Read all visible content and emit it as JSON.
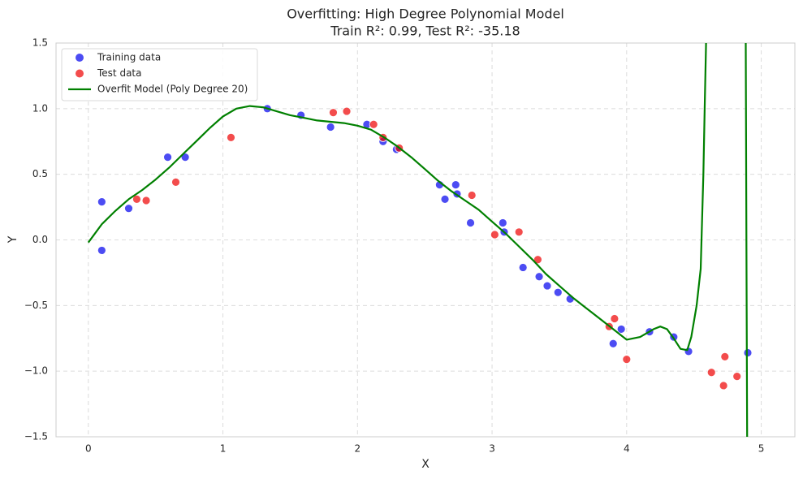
{
  "chart_data": {
    "type": "scatter",
    "title": "Overfitting: High Degree Polynomial Model",
    "subtitle": "Train R²: 0.99, Test R²: -35.18",
    "x_label": "X",
    "y_label": "Y",
    "xlim": [
      -0.24,
      5.25
    ],
    "ylim": [
      -1.5,
      1.5
    ],
    "xticks": [
      0,
      1,
      2,
      3,
      4,
      5
    ],
    "yticks": [
      {
        "value": -1.5,
        "label": "−1.5"
      },
      {
        "value": -1.0,
        "label": "−1.0"
      },
      {
        "value": -0.5,
        "label": "−0.5"
      },
      {
        "value": 0.0,
        "label": "0.0"
      },
      {
        "value": 0.5,
        "label": "0.5"
      },
      {
        "value": 1.0,
        "label": "1.0"
      },
      {
        "value": 1.5,
        "label": "1.5"
      }
    ],
    "grid": true,
    "legend": "upper left",
    "series": [
      {
        "name": "Training data",
        "mark": "point",
        "color": "#0000ee",
        "x": [
          0.1,
          0.1,
          0.3,
          0.59,
          0.72,
          1.33,
          1.58,
          1.8,
          2.07,
          2.19,
          2.29,
          2.61,
          2.65,
          2.73,
          2.74,
          2.84,
          3.08,
          3.09,
          3.23,
          3.35,
          3.41,
          3.49,
          3.58,
          3.9,
          3.96,
          4.17,
          4.35,
          4.46,
          4.9
        ],
        "values": [
          -0.08,
          0.29,
          0.24,
          0.63,
          0.63,
          1.0,
          0.95,
          0.86,
          0.88,
          0.75,
          0.69,
          0.42,
          0.31,
          0.42,
          0.35,
          0.13,
          0.13,
          0.06,
          -0.21,
          -0.28,
          -0.35,
          -0.4,
          -0.45,
          -0.79,
          -0.68,
          -0.7,
          -0.74,
          -0.85,
          -0.86
        ]
      },
      {
        "name": "Test data",
        "mark": "point",
        "color": "#ee0000",
        "x": [
          0.36,
          0.43,
          0.65,
          1.06,
          1.82,
          1.92,
          2.12,
          2.19,
          2.31,
          2.85,
          3.02,
          3.2,
          3.34,
          3.87,
          3.91,
          4.0,
          4.63,
          4.73,
          4.72,
          4.82
        ],
        "values": [
          0.31,
          0.3,
          0.44,
          0.78,
          0.97,
          0.98,
          0.88,
          0.78,
          0.7,
          0.34,
          0.04,
          0.06,
          -0.15,
          -0.66,
          -0.6,
          -0.91,
          -1.01,
          -0.89,
          -1.11,
          -1.04
        ]
      },
      {
        "name": "Overfit Model (Poly Degree 20)",
        "mark": "line",
        "color": "#008000",
        "x": [
          0,
          0.1,
          0.2,
          0.3,
          0.4,
          0.5,
          0.6,
          0.7,
          0.8,
          0.9,
          1.0,
          1.1,
          1.2,
          1.3,
          1.4,
          1.5,
          1.6,
          1.7,
          1.8,
          1.9,
          2.0,
          2.1,
          2.2,
          2.3,
          2.4,
          2.5,
          2.6,
          2.7,
          2.8,
          2.9,
          3.0,
          3.1,
          3.2,
          3.3,
          3.4,
          3.5,
          3.6,
          3.7,
          3.8,
          3.9,
          4.0,
          4.1,
          4.2,
          4.25,
          4.3,
          4.35,
          4.4,
          4.45,
          4.48,
          4.52,
          4.55,
          4.57,
          4.58,
          4.59,
          4.7,
          4.885,
          4.89,
          4.895
        ],
        "values": [
          -0.02,
          0.12,
          0.22,
          0.31,
          0.38,
          0.46,
          0.55,
          0.65,
          0.75,
          0.85,
          0.94,
          1.0,
          1.02,
          1.01,
          0.98,
          0.95,
          0.93,
          0.91,
          0.9,
          0.89,
          0.87,
          0.84,
          0.78,
          0.71,
          0.63,
          0.54,
          0.45,
          0.37,
          0.3,
          0.23,
          0.14,
          0.05,
          -0.05,
          -0.15,
          -0.26,
          -0.35,
          -0.44,
          -0.52,
          -0.6,
          -0.68,
          -0.76,
          -0.74,
          -0.68,
          -0.66,
          -0.68,
          -0.75,
          -0.83,
          -0.84,
          -0.74,
          -0.5,
          -0.22,
          0.5,
          1.0,
          1.5,
          null,
          1.5,
          0,
          -1.5
        ]
      }
    ]
  }
}
